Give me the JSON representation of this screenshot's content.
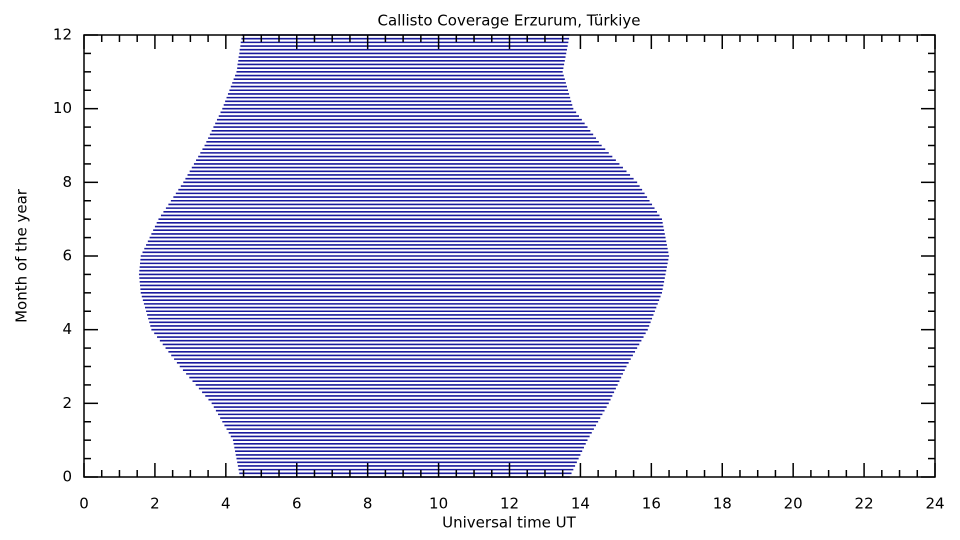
{
  "chart_data": {
    "type": "range",
    "title": "Callisto Coverage Erzurum, Türkiye",
    "xlabel": "Universal time UT",
    "ylabel": "Month of the year",
    "color": "#1a1a9c",
    "xlim": [
      0,
      24
    ],
    "ylim": [
      0,
      12
    ],
    "xticks": [
      0,
      2,
      4,
      6,
      8,
      10,
      12,
      14,
      16,
      18,
      20,
      22,
      24
    ],
    "yticks": [
      0,
      2,
      4,
      6,
      8,
      10,
      12
    ],
    "y": [
      0,
      0.1,
      0.2,
      0.3,
      0.4,
      0.5,
      0.6,
      0.7,
      0.8,
      0.9,
      1,
      1.1,
      1.2,
      1.3,
      1.4,
      1.5,
      1.6,
      1.7,
      1.8,
      1.9,
      2,
      2.1,
      2.2,
      2.3,
      2.4,
      2.5,
      2.6,
      2.7,
      2.8,
      2.9,
      3,
      3.1,
      3.2,
      3.3,
      3.4,
      3.5,
      3.6,
      3.7,
      3.8,
      3.9,
      4,
      4.1,
      4.2,
      4.3,
      4.4,
      4.5,
      4.6,
      4.7,
      4.8,
      4.9,
      5,
      5.1,
      5.2,
      5.3,
      5.4,
      5.5,
      5.6,
      5.7,
      5.8,
      5.9,
      6,
      6.1,
      6.2,
      6.3,
      6.4,
      6.5,
      6.6,
      6.7,
      6.8,
      6.9,
      7,
      7.1,
      7.2,
      7.3,
      7.4,
      7.5,
      7.6,
      7.7,
      7.8,
      7.9,
      8,
      8.1,
      8.2,
      8.3,
      8.4,
      8.5,
      8.6,
      8.7,
      8.8,
      8.9,
      9,
      9.1,
      9.2,
      9.3,
      9.4,
      9.5,
      9.6,
      9.7,
      9.8,
      9.9,
      10,
      10.1,
      10.2,
      10.3,
      10.4,
      10.5,
      10.6,
      10.7,
      10.8,
      10.9,
      11,
      11.1,
      11.2,
      11.3,
      11.4,
      11.5,
      11.6,
      11.7,
      11.8,
      11.9,
      12
    ],
    "start": [
      4.4,
      4.38,
      4.36,
      4.34,
      4.32,
      4.3,
      4.28,
      4.26,
      4.24,
      4.22,
      4.2,
      4.14,
      4.08,
      4.02,
      3.96,
      3.9,
      3.84,
      3.78,
      3.72,
      3.66,
      3.6,
      3.51,
      3.42,
      3.33,
      3.24,
      3.15,
      3.06,
      2.97,
      2.88,
      2.79,
      2.7,
      2.62,
      2.54,
      2.46,
      2.38,
      2.3,
      2.22,
      2.14,
      2.06,
      1.98,
      1.9,
      1.87,
      1.84,
      1.81,
      1.78,
      1.75,
      1.72,
      1.69,
      1.66,
      1.63,
      1.6,
      1.59,
      1.58,
      1.57,
      1.56,
      1.55,
      1.56,
      1.57,
      1.58,
      1.59,
      1.6,
      1.65,
      1.7,
      1.75,
      1.8,
      1.85,
      1.9,
      1.95,
      2.0,
      2.05,
      2.1,
      2.17,
      2.24,
      2.31,
      2.38,
      2.45,
      2.52,
      2.59,
      2.66,
      2.73,
      2.8,
      2.86,
      2.92,
      2.98,
      3.04,
      3.1,
      3.16,
      3.22,
      3.28,
      3.34,
      3.4,
      3.45,
      3.5,
      3.55,
      3.6,
      3.65,
      3.7,
      3.75,
      3.8,
      3.85,
      3.9,
      3.94,
      3.98,
      4.02,
      4.06,
      4.1,
      4.14,
      4.18,
      4.22,
      4.26,
      4.3,
      4.32,
      4.33,
      4.35,
      4.36,
      4.38,
      4.39,
      4.41,
      4.42,
      4.44,
      4.45
    ],
    "end": [
      13.7,
      13.75,
      13.8,
      13.85,
      13.9,
      13.95,
      14.0,
      14.05,
      14.1,
      14.15,
      14.2,
      14.26,
      14.32,
      14.38,
      14.44,
      14.5,
      14.56,
      14.62,
      14.68,
      14.74,
      14.8,
      14.85,
      14.9,
      14.95,
      15.0,
      15.05,
      15.1,
      15.15,
      15.2,
      15.25,
      15.3,
      15.36,
      15.42,
      15.48,
      15.54,
      15.6,
      15.66,
      15.72,
      15.78,
      15.84,
      15.9,
      15.94,
      15.98,
      16.02,
      16.06,
      16.1,
      16.14,
      16.18,
      16.22,
      16.26,
      16.3,
      16.32,
      16.34,
      16.36,
      16.38,
      16.4,
      16.42,
      16.44,
      16.46,
      16.48,
      16.5,
      16.48,
      16.46,
      16.44,
      16.42,
      16.4,
      16.38,
      16.36,
      16.34,
      16.32,
      16.3,
      16.23,
      16.16,
      16.09,
      16.02,
      15.95,
      15.88,
      15.81,
      15.74,
      15.67,
      15.6,
      15.5,
      15.4,
      15.3,
      15.2,
      15.1,
      15.0,
      14.9,
      14.8,
      14.7,
      14.6,
      14.52,
      14.44,
      14.36,
      14.28,
      14.2,
      14.12,
      14.04,
      13.96,
      13.88,
      13.8,
      13.77,
      13.74,
      13.71,
      13.68,
      13.65,
      13.62,
      13.59,
      13.56,
      13.53,
      13.5,
      13.52,
      13.54,
      13.56,
      13.58,
      13.6,
      13.62,
      13.64,
      13.66,
      13.68,
      13.7
    ]
  }
}
